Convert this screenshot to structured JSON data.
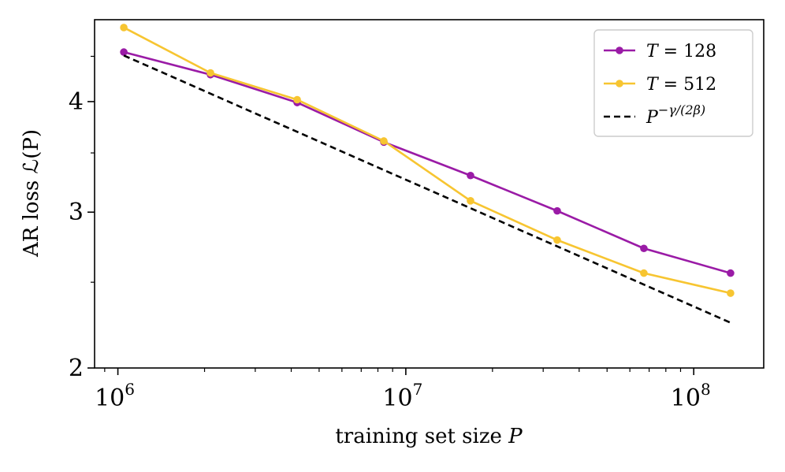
{
  "chart_data": {
    "type": "line",
    "xscale": "log",
    "yscale": "log",
    "xlabel_text": "training set size ",
    "xlabel_var": "P",
    "ylabel": "AR loss ℒ(P)",
    "xlim": [
      830000,
      175000000
    ],
    "ylim": [
      2,
      4.95
    ],
    "xticks": [
      {
        "value": 1000000,
        "base": "10",
        "exp": "6"
      },
      {
        "value": 10000000,
        "base": "10",
        "exp": "7"
      },
      {
        "value": 100000000,
        "base": "10",
        "exp": "8"
      }
    ],
    "yticks": [
      {
        "value": 2,
        "label": "2"
      },
      {
        "value": 3,
        "label": "3"
      },
      {
        "value": 4,
        "label": "4"
      }
    ],
    "series": [
      {
        "name": "T = 128",
        "color": "#9a1ba6",
        "style": "solid",
        "markers": true,
        "x": [
          1048576,
          2097152,
          4194304,
          8388608,
          16777216,
          33554432,
          67108864,
          134217728
        ],
        "y": [
          4.55,
          4.29,
          3.99,
          3.6,
          3.3,
          3.01,
          2.73,
          2.56
        ]
      },
      {
        "name": "T = 512",
        "color": "#f7c531",
        "style": "solid",
        "markers": true,
        "x": [
          1048576,
          2097152,
          4194304,
          8388608,
          16777216,
          33554432,
          67108864,
          134217728
        ],
        "y": [
          4.85,
          4.31,
          4.02,
          3.61,
          3.09,
          2.79,
          2.56,
          2.43
        ]
      },
      {
        "name": "P^{-γ/(2β)}",
        "color": "#000000",
        "style": "dashed",
        "markers": false,
        "x": [
          1048576,
          134217728
        ],
        "y": [
          4.51,
          2.25
        ]
      }
    ],
    "legend": {
      "position": "top-right",
      "entries": [
        {
          "var": "T",
          "rest": " = 128",
          "color": "#9a1ba6",
          "style": "solid"
        },
        {
          "var": "T",
          "rest": " = 512",
          "color": "#f7c531",
          "style": "solid"
        },
        {
          "var": "P",
          "rest": "",
          "sup": "−γ/(2β)",
          "color": "#000000",
          "style": "dashed"
        }
      ]
    },
    "grid": false
  }
}
